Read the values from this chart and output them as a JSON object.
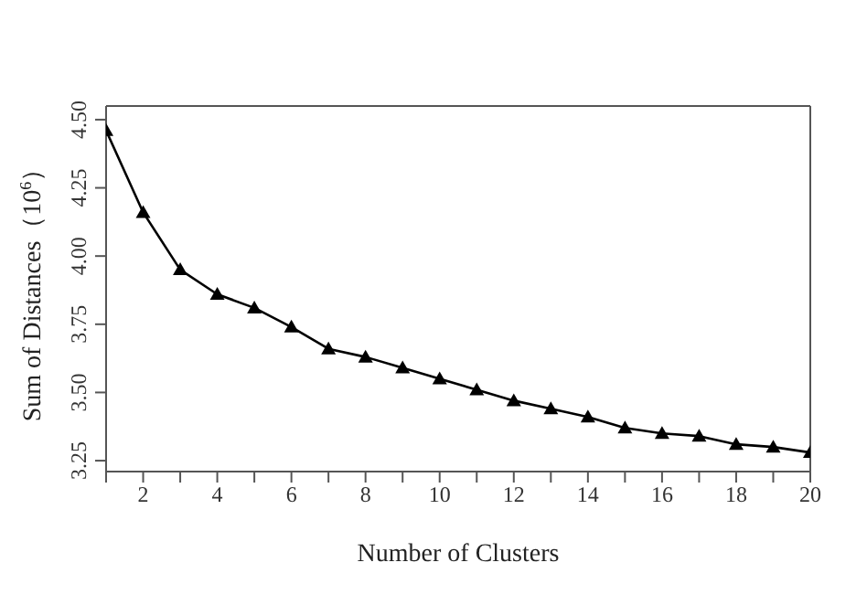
{
  "chart_data": {
    "type": "line",
    "xlabel": "Number of Clusters",
    "ylabel": "Sum of Distances（10$^{6}$）",
    "x": [
      1,
      2,
      3,
      4,
      5,
      6,
      7,
      8,
      9,
      10,
      11,
      12,
      13,
      14,
      15,
      16,
      17,
      18,
      19,
      20
    ],
    "series": [
      {
        "color": "#000000",
        "values": [
          4.46,
          4.16,
          3.95,
          3.86,
          3.81,
          3.74,
          3.66,
          3.63,
          3.59,
          3.55,
          3.51,
          3.47,
          3.44,
          3.41,
          3.37,
          3.35,
          3.34,
          3.31,
          3.3,
          3.28
        ]
      }
    ],
    "xlim": [
      1,
      20
    ],
    "xticks": [
      {
        "value": 1,
        "label": null
      },
      2,
      {
        "value": 3,
        "label": null
      },
      4,
      {
        "value": 5,
        "label": null
      },
      6,
      {
        "value": 7,
        "label": null
      },
      8,
      {
        "value": 9,
        "label": null
      },
      10,
      {
        "value": 11,
        "label": null
      },
      12,
      {
        "value": 13,
        "label": null
      },
      14,
      {
        "value": 15,
        "label": null
      },
      16,
      {
        "value": 17,
        "label": null
      },
      18,
      {
        "value": 19,
        "label": null
      },
      20
    ],
    "ylim": [
      3.21,
      4.55
    ],
    "yticks": [
      {
        "value": 3.25,
        "label": "3.25"
      },
      {
        "value": 3.5,
        "label": "3.50"
      },
      {
        "value": 3.75,
        "label": "3.75"
      },
      {
        "value": 4,
        "label": "4.00"
      },
      {
        "value": 4.25,
        "label": "4.25"
      },
      {
        "value": 4.5,
        "label": "4.50"
      }
    ],
    "grid": false,
    "legend": false,
    "marker": "triangle",
    "line_style": "solid"
  }
}
